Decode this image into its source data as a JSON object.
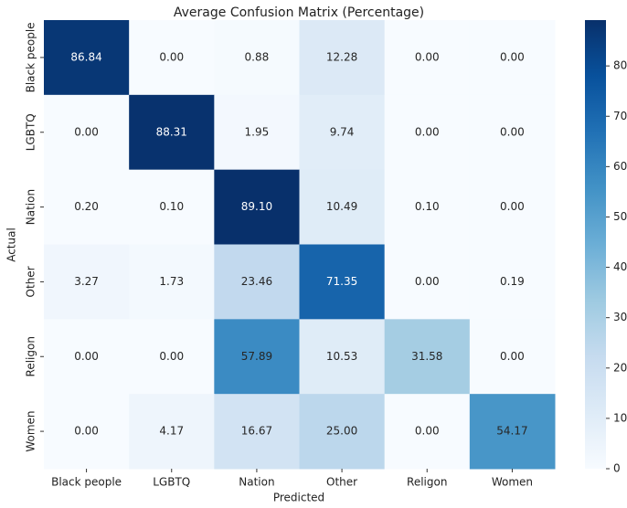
{
  "chart_data": {
    "type": "heatmap",
    "title": "Average Confusion Matrix (Percentage)",
    "x_label": "Predicted",
    "y_label": "Actual",
    "x_categories": [
      "Black people",
      "LGBTQ",
      "Nation",
      "Other",
      "Religon",
      "Women"
    ],
    "y_categories": [
      "Black people",
      "LGBTQ",
      "Nation",
      "Other",
      "Religon",
      "Women"
    ],
    "values": [
      [
        86.84,
        0,
        0.88,
        12.28,
        0,
        0
      ],
      [
        0,
        88.31,
        1.95,
        9.74,
        0,
        0
      ],
      [
        0.2,
        0.1,
        89.1,
        10.49,
        0.1,
        0
      ],
      [
        3.27,
        1.73,
        23.46,
        71.35,
        0,
        0.19
      ],
      [
        0,
        0,
        57.89,
        10.53,
        31.58,
        0
      ],
      [
        0,
        4.17,
        16.67,
        25,
        0,
        54.17
      ]
    ],
    "value_labels": [
      [
        "86.84",
        "0.00",
        "0.88",
        "12.28",
        "0.00",
        "0.00"
      ],
      [
        "0.00",
        "88.31",
        "1.95",
        "9.74",
        "0.00",
        "0.00"
      ],
      [
        "0.20",
        "0.10",
        "89.10",
        "10.49",
        "0.10",
        "0.00"
      ],
      [
        "3.27",
        "1.73",
        "23.46",
        "71.35",
        "0.00",
        "0.19"
      ],
      [
        "0.00",
        "0.00",
        "57.89",
        "10.53",
        "31.58",
        "0.00"
      ],
      [
        "0.00",
        "4.17",
        "16.67",
        "25.00",
        "0.00",
        "54.17"
      ]
    ],
    "colormap": "Blues",
    "clim": [
      0,
      89.1
    ],
    "cticks": [
      0,
      10,
      20,
      30,
      40,
      50,
      60,
      70,
      80
    ]
  }
}
